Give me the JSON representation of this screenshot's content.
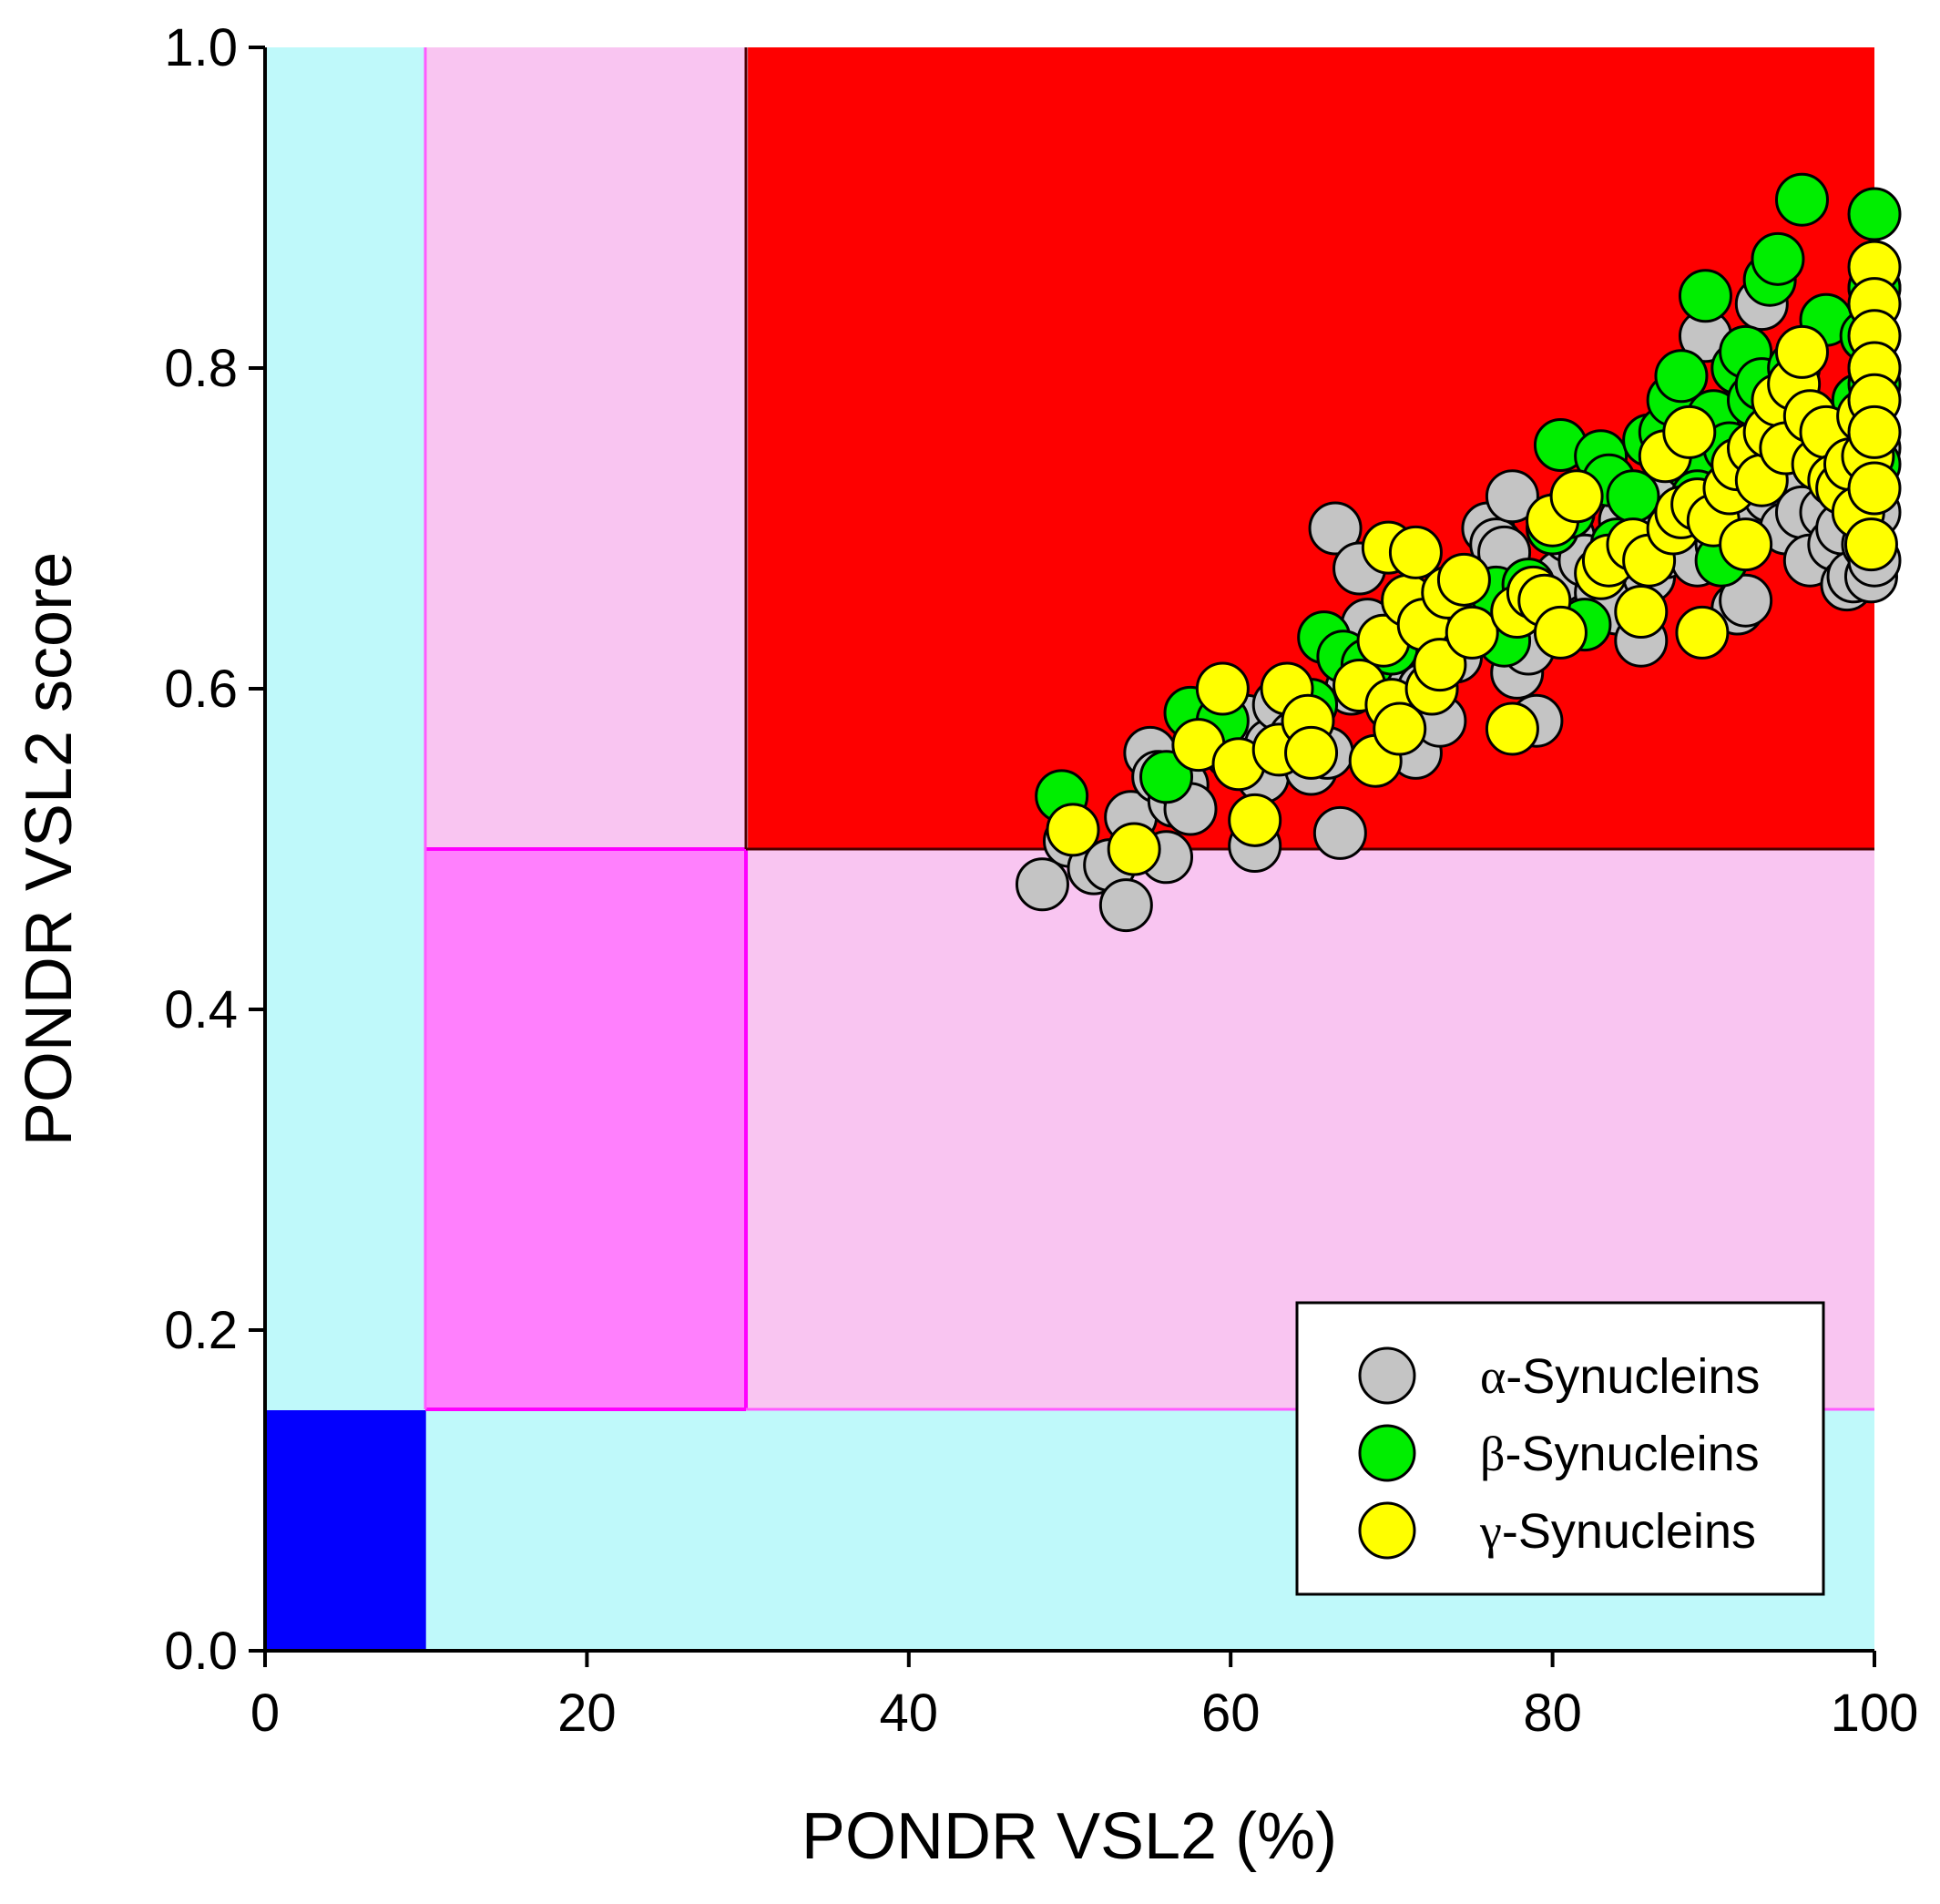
{
  "chart_data": {
    "type": "scatter",
    "title": "",
    "xlabel": "PONDR VSL2 (%)",
    "ylabel": "PONDR VSL2 score",
    "xlim": [
      0,
      100
    ],
    "ylim": [
      0,
      1.0
    ],
    "x_ticks": [
      "0",
      "20",
      "40",
      "60",
      "80",
      "100"
    ],
    "y_ticks": [
      "0.0",
      "0.2",
      "0.4",
      "0.6",
      "0.8",
      "1.0"
    ],
    "grid": false,
    "legend_position": "bottom-right",
    "background_regions": [
      {
        "name": "cyan-background",
        "x": [
          0,
          100
        ],
        "y": [
          0,
          1.0
        ],
        "color": "#bff9fa"
      },
      {
        "name": "pink-vertical-band",
        "x": [
          10,
          30
        ],
        "y": [
          0.15,
          1.0
        ],
        "color": "#f9c5f1"
      },
      {
        "name": "pink-horizontal-band",
        "x": [
          10,
          100
        ],
        "y": [
          0.15,
          0.5
        ],
        "color": "#f9c5f1"
      },
      {
        "name": "magenta-box",
        "x": [
          10,
          30
        ],
        "y": [
          0.15,
          0.5
        ],
        "color": "#ff80fd"
      },
      {
        "name": "red-box",
        "x": [
          30,
          100
        ],
        "y": [
          0.5,
          1.0
        ],
        "color": "#fe0000"
      },
      {
        "name": "blue-box",
        "x": [
          0,
          10
        ],
        "y": [
          0,
          0.15
        ],
        "color": "#0300fe"
      }
    ],
    "series": [
      {
        "name": "α-Synucleins",
        "symbol": "α",
        "label_rest": "-Synucleins",
        "color": "#c4c4c4",
        "points": [
          [
            48.3,
            0.478
          ],
          [
            50.0,
            0.505
          ],
          [
            51.5,
            0.488
          ],
          [
            52.5,
            0.49
          ],
          [
            53.5,
            0.465
          ],
          [
            53.8,
            0.52
          ],
          [
            55.0,
            0.56
          ],
          [
            55.5,
            0.545
          ],
          [
            56.0,
            0.495
          ],
          [
            56.5,
            0.53
          ],
          [
            57.0,
            0.54
          ],
          [
            57.5,
            0.525
          ],
          [
            60.0,
            0.56
          ],
          [
            61.0,
            0.58
          ],
          [
            61.5,
            0.502
          ],
          [
            62.0,
            0.545
          ],
          [
            62.5,
            0.565
          ],
          [
            63.0,
            0.59
          ],
          [
            64.0,
            0.57
          ],
          [
            65.0,
            0.55
          ],
          [
            66.0,
            0.56
          ],
          [
            66.5,
            0.7
          ],
          [
            66.8,
            0.51
          ],
          [
            67.5,
            0.6
          ],
          [
            68.0,
            0.675
          ],
          [
            68.5,
            0.64
          ],
          [
            69.0,
            0.62
          ],
          [
            70.0,
            0.63
          ],
          [
            70.5,
            0.61
          ],
          [
            71.0,
            0.57
          ],
          [
            71.5,
            0.56
          ],
          [
            72.0,
            0.6
          ],
          [
            73.0,
            0.58
          ],
          [
            74.0,
            0.62
          ],
          [
            75.0,
            0.64
          ],
          [
            75.5,
            0.66
          ],
          [
            76.0,
            0.7
          ],
          [
            76.5,
            0.69
          ],
          [
            77.0,
            0.685
          ],
          [
            77.5,
            0.72
          ],
          [
            77.8,
            0.61
          ],
          [
            78.5,
            0.625
          ],
          [
            79.0,
            0.58
          ],
          [
            80.0,
            0.655
          ],
          [
            80.5,
            0.67
          ],
          [
            81.0,
            0.695
          ],
          [
            82.0,
            0.68
          ],
          [
            83.0,
            0.66
          ],
          [
            84.0,
            0.65
          ],
          [
            84.5,
            0.705
          ],
          [
            85.0,
            0.69
          ],
          [
            85.5,
            0.63
          ],
          [
            86.0,
            0.67
          ],
          [
            86.5,
            0.71
          ],
          [
            87.0,
            0.685
          ],
          [
            87.5,
            0.73
          ],
          [
            88.0,
            0.75
          ],
          [
            88.5,
            0.7
          ],
          [
            89.0,
            0.68
          ],
          [
            89.5,
            0.82
          ],
          [
            90.0,
            0.72
          ],
          [
            90.5,
            0.69
          ],
          [
            91.0,
            0.71
          ],
          [
            91.5,
            0.65
          ],
          [
            92.0,
            0.655
          ],
          [
            92.5,
            0.7
          ],
          [
            93.0,
            0.84
          ],
          [
            93.5,
            0.72
          ],
          [
            94.0,
            0.75
          ],
          [
            94.5,
            0.7
          ],
          [
            95.0,
            0.73
          ],
          [
            95.5,
            0.71
          ],
          [
            96.0,
            0.68
          ],
          [
            96.5,
            0.74
          ],
          [
            97.0,
            0.71
          ],
          [
            97.5,
            0.69
          ],
          [
            98.0,
            0.7
          ],
          [
            98.3,
            0.665
          ],
          [
            98.7,
            0.67
          ],
          [
            99.0,
            0.73
          ],
          [
            99.3,
            0.72
          ],
          [
            99.6,
            0.69
          ],
          [
            99.8,
            0.67
          ],
          [
            100.0,
            0.71
          ],
          [
            100.0,
            0.75
          ],
          [
            100.0,
            0.8
          ],
          [
            100.0,
            0.85
          ],
          [
            100.0,
            0.68
          ]
        ]
      },
      {
        "name": "β-Synucleins",
        "symbol": "β",
        "label_rest": "-Synucleins",
        "color": "#00ee00",
        "points": [
          [
            49.5,
            0.533
          ],
          [
            56.0,
            0.545
          ],
          [
            57.5,
            0.585
          ],
          [
            59.5,
            0.58
          ],
          [
            65.0,
            0.59
          ],
          [
            65.8,
            0.632
          ],
          [
            67.0,
            0.62
          ],
          [
            68.5,
            0.615
          ],
          [
            70.0,
            0.625
          ],
          [
            75.0,
            0.64
          ],
          [
            76.5,
            0.66
          ],
          [
            77.0,
            0.63
          ],
          [
            78.5,
            0.665
          ],
          [
            80.0,
            0.7
          ],
          [
            80.5,
            0.752
          ],
          [
            81.0,
            0.71
          ],
          [
            82.0,
            0.64
          ],
          [
            83.0,
            0.745
          ],
          [
            83.5,
            0.73
          ],
          [
            84.0,
            0.69
          ],
          [
            85.0,
            0.72
          ],
          [
            86.0,
            0.755
          ],
          [
            87.0,
            0.76
          ],
          [
            87.5,
            0.78
          ],
          [
            88.0,
            0.795
          ],
          [
            88.5,
            0.74
          ],
          [
            89.0,
            0.72
          ],
          [
            89.5,
            0.845
          ],
          [
            90.0,
            0.77
          ],
          [
            90.5,
            0.68
          ],
          [
            91.0,
            0.75
          ],
          [
            91.5,
            0.8
          ],
          [
            92.0,
            0.81
          ],
          [
            92.5,
            0.78
          ],
          [
            93.0,
            0.79
          ],
          [
            93.5,
            0.855
          ],
          [
            94.0,
            0.868
          ],
          [
            94.5,
            0.75
          ],
          [
            95.0,
            0.8
          ],
          [
            95.5,
            0.905
          ],
          [
            96.0,
            0.77
          ],
          [
            97.0,
            0.83
          ],
          [
            97.5,
            0.76
          ],
          [
            98.5,
            0.74
          ],
          [
            99.0,
            0.78
          ],
          [
            99.5,
            0.82
          ],
          [
            100.0,
            0.896
          ],
          [
            100.0,
            0.85
          ],
          [
            100.0,
            0.79
          ],
          [
            100.0,
            0.74
          ]
        ]
      },
      {
        "name": "γ-Synucleins",
        "symbol": "γ",
        "label_rest": "-Synucleins",
        "color": "#ffff00",
        "points": [
          [
            50.2,
            0.512
          ],
          [
            54.0,
            0.5
          ],
          [
            58.0,
            0.565
          ],
          [
            59.5,
            0.6
          ],
          [
            60.5,
            0.553
          ],
          [
            61.5,
            0.518
          ],
          [
            63.0,
            0.562
          ],
          [
            63.5,
            0.6
          ],
          [
            64.8,
            0.58
          ],
          [
            65.0,
            0.56
          ],
          [
            68.0,
            0.602
          ],
          [
            69.0,
            0.555
          ],
          [
            69.5,
            0.63
          ],
          [
            69.8,
            0.688
          ],
          [
            70.0,
            0.59
          ],
          [
            70.5,
            0.575
          ],
          [
            71.0,
            0.655
          ],
          [
            71.5,
            0.685
          ],
          [
            72.0,
            0.64
          ],
          [
            72.5,
            0.6
          ],
          [
            73.0,
            0.615
          ],
          [
            73.5,
            0.66
          ],
          [
            74.5,
            0.668
          ],
          [
            75.0,
            0.635
          ],
          [
            77.5,
            0.575
          ],
          [
            77.8,
            0.648
          ],
          [
            78.8,
            0.66
          ],
          [
            79.5,
            0.655
          ],
          [
            80.0,
            0.705
          ],
          [
            80.5,
            0.635
          ],
          [
            81.5,
            0.72
          ],
          [
            83.0,
            0.672
          ],
          [
            83.5,
            0.68
          ],
          [
            85.0,
            0.69
          ],
          [
            85.5,
            0.648
          ],
          [
            86.0,
            0.68
          ],
          [
            87.0,
            0.745
          ],
          [
            87.5,
            0.7
          ],
          [
            88.0,
            0.71
          ],
          [
            88.5,
            0.76
          ],
          [
            89.0,
            0.715
          ],
          [
            89.3,
            0.635
          ],
          [
            90.0,
            0.705
          ],
          [
            91.0,
            0.725
          ],
          [
            91.5,
            0.74
          ],
          [
            92.0,
            0.69
          ],
          [
            92.5,
            0.75
          ],
          [
            93.0,
            0.73
          ],
          [
            93.5,
            0.76
          ],
          [
            94.0,
            0.78
          ],
          [
            94.5,
            0.75
          ],
          [
            95.0,
            0.79
          ],
          [
            95.5,
            0.81
          ],
          [
            96.0,
            0.77
          ],
          [
            96.5,
            0.74
          ],
          [
            97.0,
            0.76
          ],
          [
            97.5,
            0.73
          ],
          [
            98.0,
            0.725
          ],
          [
            98.5,
            0.74
          ],
          [
            99.0,
            0.71
          ],
          [
            99.3,
            0.77
          ],
          [
            99.6,
            0.745
          ],
          [
            99.8,
            0.69
          ],
          [
            100.0,
            0.863
          ],
          [
            100.0,
            0.84
          ],
          [
            100.0,
            0.82
          ],
          [
            100.0,
            0.8
          ],
          [
            100.0,
            0.78
          ],
          [
            100.0,
            0.76
          ],
          [
            100.0,
            0.725
          ]
        ]
      }
    ]
  }
}
